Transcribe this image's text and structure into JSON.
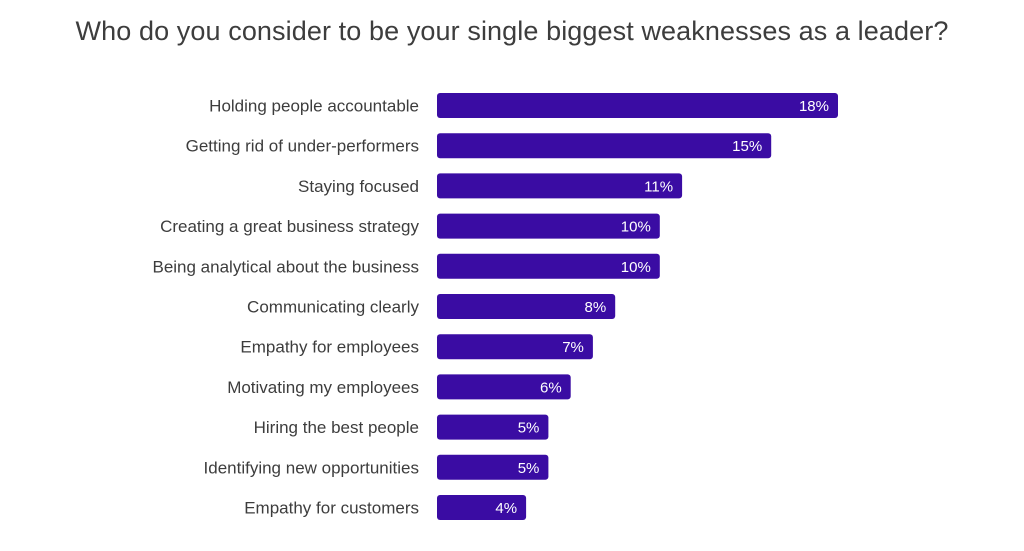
{
  "chart_data": {
    "type": "bar",
    "orientation": "horizontal",
    "title": "Who do you consider to be your single biggest weaknesses as a leader?",
    "categories": [
      "Holding people accountable",
      "Getting rid of under-performers",
      "Staying focused",
      "Creating a great business strategy",
      "Being analytical about the business",
      "Communicating clearly",
      "Empathy for employees",
      "Motivating my employees",
      "Hiring the best people",
      "Identifying new opportunities",
      "Empathy for customers"
    ],
    "values": [
      18,
      15,
      11,
      10,
      10,
      8,
      7,
      6,
      5,
      5,
      4
    ],
    "value_labels": [
      "18%",
      "15%",
      "11%",
      "10%",
      "10%",
      "8%",
      "7%",
      "6%",
      "5%",
      "5%",
      "4%"
    ],
    "unit": "%",
    "xlim": [
      0,
      18
    ],
    "grid": false,
    "colors": {
      "bar": "#3a0ca3",
      "text": "#3d3d3d",
      "value_text": "#ffffff"
    }
  }
}
